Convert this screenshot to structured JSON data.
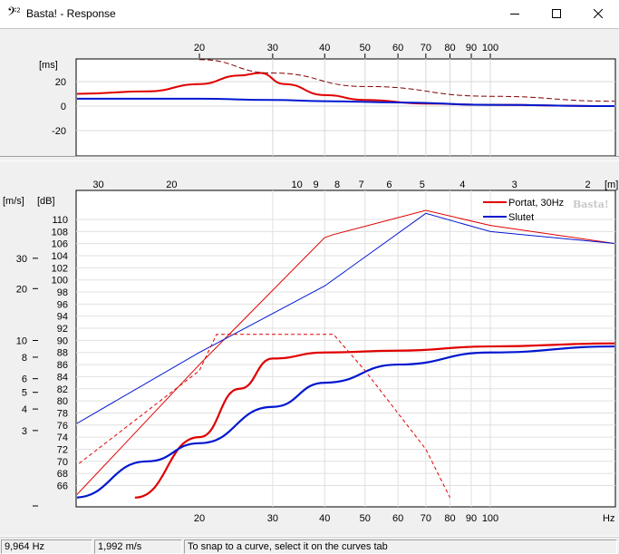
{
  "window": {
    "icon_glyph": "𝄢",
    "icon_super": "2",
    "title": "Basta! - Response",
    "controls": [
      "minimize-icon",
      "maximize-icon",
      "close-icon"
    ]
  },
  "top_chart": {
    "unit_label": "[ms]",
    "freq_ticks": [
      "20",
      "30",
      "40",
      "50",
      "60",
      "70",
      "80",
      "90",
      "100"
    ],
    "y_ticks": [
      "20",
      "0",
      "-20"
    ]
  },
  "bottom_chart": {
    "left_unit": "[m/s]",
    "db_unit": "[dB]",
    "top_unit": "[m]",
    "x_unit": "Hz",
    "watermark": "Basta!",
    "wavelength_ticks": [
      "30",
      "20",
      "10",
      "9",
      "8",
      "7",
      "6",
      "5",
      "4",
      "3",
      "2"
    ],
    "velocity_ticks": [
      "30",
      "20",
      "10",
      "8",
      "6",
      "5",
      "4",
      "3"
    ],
    "db_ticks": [
      "110",
      "108",
      "106",
      "104",
      "102",
      "100",
      "98",
      "96",
      "94",
      "92",
      "90",
      "88",
      "86",
      "84",
      "82",
      "80",
      "78",
      "76",
      "74",
      "72",
      "70",
      "68",
      "66"
    ],
    "freq_ticks": [
      "20",
      "30",
      "40",
      "50",
      "60",
      "70",
      "80",
      "90",
      "100"
    ],
    "legend": [
      {
        "label": "Portat, 30Hz",
        "color": "#e00000"
      },
      {
        "label": "Slutet",
        "color": "#0018d0"
      }
    ]
  },
  "chart_data": [
    {
      "type": "line",
      "ylabel": "[ms]",
      "x_scale": "log",
      "ylim": [
        -40,
        40
      ],
      "series": [
        {
          "color": "#e00000",
          "x": [
            10,
            15,
            20,
            25,
            28,
            32,
            40,
            50,
            70,
            100,
            200
          ],
          "y": [
            10,
            12,
            18,
            25,
            27,
            18,
            9,
            5,
            2,
            1,
            0
          ]
        },
        {
          "color": "#0018d0",
          "x": [
            10,
            20,
            30,
            40,
            60,
            100,
            200
          ],
          "y": [
            6,
            6,
            5,
            4,
            3,
            1,
            0
          ]
        },
        {
          "color": "#800000",
          "dashed": true,
          "x": [
            20,
            30,
            50,
            100,
            200
          ],
          "y": [
            38,
            27,
            16,
            8,
            4
          ]
        }
      ]
    },
    {
      "type": "line",
      "xlabel": "Hz",
      "ylabel": "[dB]",
      "x_scale": "log",
      "ylim": [
        64,
        112
      ],
      "series": [
        {
          "name": "Portat, 30Hz",
          "color": "#e00000",
          "x": [
            14,
            20,
            25,
            30,
            40,
            60,
            100,
            200
          ],
          "y": [
            64,
            74,
            82,
            87,
            88,
            88.3,
            89,
            89.5
          ]
        },
        {
          "name": "Slutet",
          "color": "#0018d0",
          "x": [
            10,
            15,
            20,
            30,
            40,
            60,
            100,
            200
          ],
          "y": [
            64,
            70,
            73,
            79,
            83,
            86,
            88,
            89
          ]
        },
        {
          "color": "#e00000",
          "thin": true,
          "x": [
            10,
            20,
            40,
            42,
            70,
            100,
            200
          ],
          "y": [
            64,
            86,
            107,
            107.5,
            111.5,
            109,
            106
          ]
        },
        {
          "color": "#0018d0",
          "thin": true,
          "x": [
            10,
            20,
            40,
            70,
            100,
            200
          ],
          "y": [
            76,
            88,
            99,
            111,
            108,
            106
          ]
        },
        {
          "color": "#e00000",
          "dashed": true,
          "x": [
            10,
            20,
            22,
            42,
            50,
            70,
            80
          ],
          "y": [
            69,
            85,
            91,
            91,
            85,
            72,
            64
          ]
        }
      ]
    }
  ],
  "status": {
    "frequency": "9,964 Hz",
    "velocity": "1,992 m/s",
    "hint": "To snap to a curve, select it on the curves tab"
  }
}
